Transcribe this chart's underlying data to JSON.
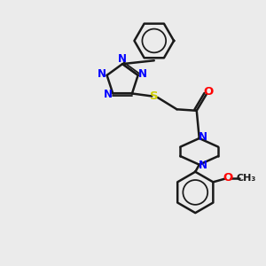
{
  "bg_color": "#ebebeb",
  "bond_color": "#1a1a1a",
  "N_color": "#0000ff",
  "S_color": "#cccc00",
  "O_color": "#ff0000",
  "C_color": "#1a1a1a",
  "bond_width": 1.8,
  "font_size": 8.5,
  "figsize": [
    3.0,
    3.0
  ],
  "dpi": 100,
  "xlim": [
    0,
    10
  ],
  "ylim": [
    0,
    10
  ]
}
